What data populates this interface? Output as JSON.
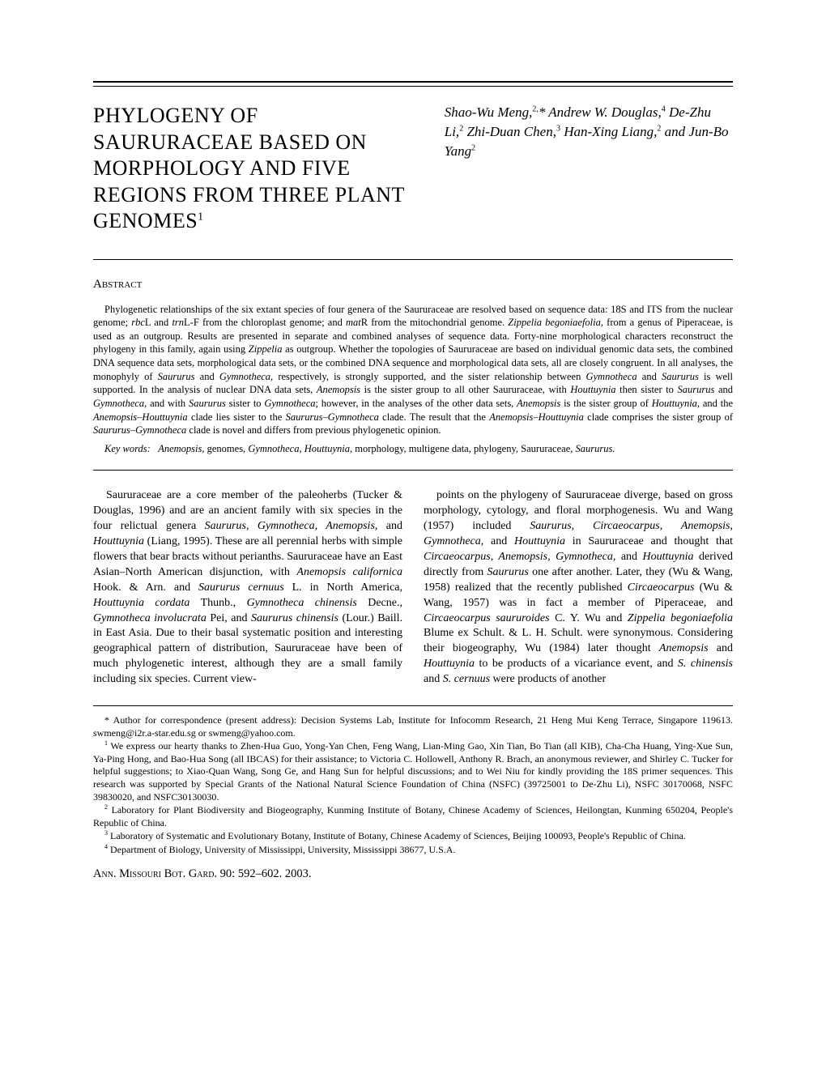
{
  "title": "PHYLOGENY OF SAURURACEAE BASED ON MORPHOLOGY AND FIVE REGIONS FROM THREE PLANT GENOMES",
  "title_sup": "1",
  "authors_html": "Shao-Wu Meng,<sup>2,</sup>* Andrew W. Douglas,<sup>4</sup> De-Zhu Li,<sup>2</sup> Zhi-Duan Chen,<sup>3</sup> Han-Xing Liang,<sup>2</sup> and Jun-Bo Yang<sup>2</sup>",
  "abstract_heading": "Abstract",
  "abstract_html": "Phylogenetic relationships of the six extant species of four genera of the Saururaceae are resolved based on sequence data: 18S and ITS from the nuclear genome; <span class=\"italic\">rbc</span>L and <span class=\"italic\">trn</span>L-F from the chloroplast genome; and <span class=\"italic\">mat</span>R from the mitochondrial genome. <span class=\"italic\">Zippelia begoniaefolia,</span> from a genus of Piperaceae, is used as an outgroup. Results are presented in separate and combined analyses of sequence data. Forty-nine morphological characters reconstruct the phylogeny in this family, again using <span class=\"italic\">Zippelia</span> as outgroup. Whether the topologies of Saururaceae are based on individual genomic data sets, the combined DNA sequence data sets, morphological data sets, or the combined DNA sequence and morphological data sets, all are closely congruent. In all analyses, the monophyly of <span class=\"italic\">Saururus</span> and <span class=\"italic\">Gymnotheca,</span> respectively, is strongly supported, and the sister relationship between <span class=\"italic\">Gymnotheca</span> and <span class=\"italic\">Saururus</span> is well supported. In the analysis of nuclear DNA data sets, <span class=\"italic\">Anemopsis</span> is the sister group to all other Saururaceae, with <span class=\"italic\">Houttuynia</span> then sister to <span class=\"italic\">Saururus</span> and <span class=\"italic\">Gymnotheca,</span> and with <span class=\"italic\">Saururus</span> sister to <span class=\"italic\">Gymnotheca</span>; however, in the analyses of the other data sets, <span class=\"italic\">Anemopsis</span> is the sister group of <span class=\"italic\">Houttuynia,</span> and the <span class=\"italic\">Anemopsis–Houttuynia</span> clade lies sister to the <span class=\"italic\">Saururus–Gymnotheca</span> clade. The result that the <span class=\"italic\">Anemopsis–Houttuynia</span> clade comprises the sister group of <span class=\"italic\">Saururus–Gymnotheca</span> clade is novel and differs from previous phylogenetic opinion.",
  "keywords_label": "Key words:",
  "keywords_html": "<span class=\"italic\">Anemopsis,</span> genomes, <span class=\"italic\">Gymnotheca, Houttuynia,</span> morphology, multigene data, phylogeny, Saururaceae, <span class=\"italic\">Saururus.</span>",
  "body_col1_html": "Saururaceae are a core member of the paleoherbs (Tucker &amp; Douglas, 1996) and are an ancient family with six species in the four relictual genera <span class=\"italic\">Saururus, Gymnotheca, Anemopsis,</span> and <span class=\"italic\">Houttuynia</span> (Liang, 1995). These are all perennial herbs with simple flowers that bear bracts without perianths. Saururaceae have an East Asian–North American disjunction, with <span class=\"italic\">Anemopsis californica</span> Hook. &amp; Arn. and <span class=\"italic\">Saururus cernuus</span> L. in North America, <span class=\"italic\">Houttuynia cordata</span> Thunb., <span class=\"italic\">Gymnotheca chinensis</span> Decne., <span class=\"italic\">Gymnotheca involucrata</span> Pei, and <span class=\"italic\">Saururus chinensis</span> (Lour.) Baill. in East Asia. Due to their basal systematic position and interesting geographical pattern of distribution, Saururaceae have been of much phylogenetic interest, although they are a small family including six species. Current view-",
  "body_col2_html": "points on the phylogeny of Saururaceae diverge, based on gross morphology, cytology, and floral morphogenesis. Wu and Wang (1957) included <span class=\"italic\">Saururus, Circaeocarpus, Anemopsis, Gymnotheca,</span> and <span class=\"italic\">Houttuynia</span> in Saururaceae and thought that <span class=\"italic\">Circaeocarpus, Anemopsis, Gymnotheca,</span> and <span class=\"italic\">Houttuynia</span> derived directly from <span class=\"italic\">Saururus</span> one after another. Later, they (Wu &amp; Wang, 1958) realized that the recently published <span class=\"italic\">Circaeocarpus</span> (Wu &amp; Wang, 1957) was in fact a member of Piperaceae, and <span class=\"italic\">Circaeocarpus saururoides</span> C. Y. Wu and <span class=\"italic\">Zippelia begoniaefolia</span> Blume ex Schult. &amp; L. H. Schult. were synonymous. Considering their biogeography, Wu (1984) later thought <span class=\"italic\">Anemopsis</span> and <span class=\"italic\">Houttuynia</span> to be products of a vicariance event, and <span class=\"italic\">S. chinensis</span> and <span class=\"italic\">S. cernuus</span> were products of another",
  "footnote_star": "* Author for correspondence (present address): Decision Systems Lab, Institute for Infocomm Research, 21 Heng Mui Keng Terrace, Singapore 119613. swmeng@i2r.a-star.edu.sg or swmeng@yahoo.com.",
  "footnote_1": "We express our hearty thanks to Zhen-Hua Guo, Yong-Yan Chen, Feng Wang, Lian-Ming Gao, Xin Tian, Bo Tian (all KIB), Cha-Cha Huang, Ying-Xue Sun, Ya-Ping Hong, and Bao-Hua Song (all IBCAS) for their assistance; to Victoria C. Hollowell, Anthony R. Brach, an anonymous reviewer, and Shirley C. Tucker for helpful suggestions; to Xiao-Quan Wang, Song Ge, and Hang Sun for helpful discussions; and to Wei Niu for kindly providing the 18S primer sequences. This research was supported by Special Grants of the National Natural Science Foundation of China (NSFC) (39725001 to De-Zhu Li), NSFC 30170068, NSFC 39830020, and NSFC30130030.",
  "footnote_2": "Laboratory for Plant Biodiversity and Biogeography, Kunming Institute of Botany, Chinese Academy of Sciences, Heilongtan, Kunming 650204, People's Republic of China.",
  "footnote_3": "Laboratory of Systematic and Evolutionary Botany, Institute of Botany, Chinese Academy of Sciences, Beijing 100093, People's Republic of China.",
  "footnote_4": "Department of Biology, University of Mississippi, University, Mississippi 38677, U.S.A.",
  "citation": "Ann. Missouri Bot. Gard. 90: 592–602. 2003."
}
